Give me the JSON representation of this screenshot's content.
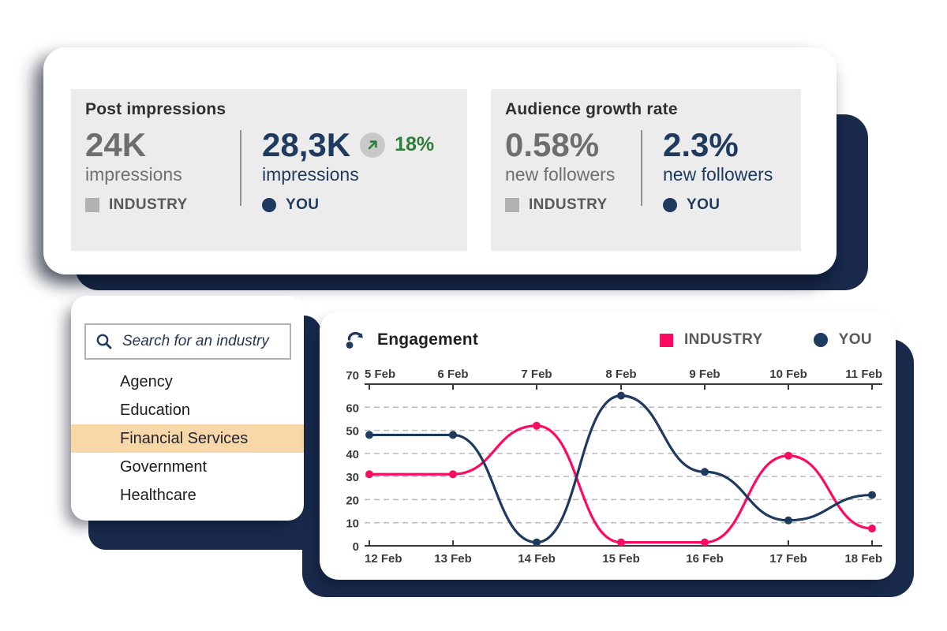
{
  "stats_card": {
    "post_impressions": {
      "title": "Post impressions",
      "industry": {
        "value": "24K",
        "unit": "impressions",
        "label": "INDUSTRY"
      },
      "you": {
        "value": "28,3K",
        "unit": "impressions",
        "label": "YOU",
        "delta": "18%"
      }
    },
    "audience_growth": {
      "title": "Audience growth rate",
      "industry": {
        "value": "0.58%",
        "unit": "new followers",
        "label": "INDUSTRY"
      },
      "you": {
        "value": "2.3%",
        "unit": "new followers",
        "label": "YOU"
      }
    }
  },
  "industry_picker": {
    "search_placeholder": "Search for an industry",
    "items": [
      "Agency",
      "Education",
      "Financial Services",
      "Government",
      "Healthcare"
    ],
    "selected": "Financial Services",
    "selected_index": 2
  },
  "chart_data": {
    "type": "line",
    "title": "Engagement",
    "legend": [
      {
        "name": "INDUSTRY",
        "color": "#fb0b62",
        "marker": "square"
      },
      {
        "name": "YOU",
        "color": "#1e3a5e",
        "marker": "circle"
      }
    ],
    "x_top_labels": [
      "5 Feb",
      "6 Feb",
      "7 Feb",
      "8 Feb",
      "9 Feb",
      "10 Feb",
      "11 Feb"
    ],
    "x_bottom_labels": [
      "12 Feb",
      "13 Feb",
      "14 Feb",
      "15 Feb",
      "16 Feb",
      "17 Feb",
      "18 Feb"
    ],
    "ylim": [
      0,
      70
    ],
    "yticks": [
      0,
      10,
      20,
      30,
      40,
      50,
      60,
      70
    ],
    "grid": "horizontal-dashed",
    "legend_position": "top-right",
    "series": [
      {
        "name": "INDUSTRY",
        "color": "#fb0b62",
        "values": [
          31,
          31,
          52,
          1.5,
          1.5,
          39,
          7.5
        ]
      },
      {
        "name": "YOU",
        "color": "#1e3a5e",
        "values": [
          48,
          48,
          1.5,
          65,
          32,
          11,
          22
        ]
      }
    ]
  },
  "colors": {
    "backdrop_navy": "#192a4b",
    "navy": "#1e3a5e",
    "pink": "#fb0b62",
    "green": "#2e7d3b",
    "gray_value": "#6e6e6e",
    "legend_gray": "#59595b",
    "stat_block_bg": "#ececec",
    "highlight_peach": "#f8d8a8"
  }
}
